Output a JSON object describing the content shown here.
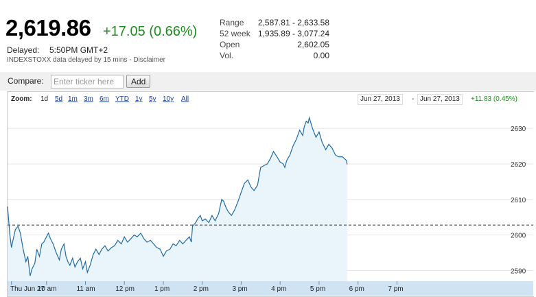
{
  "quote": {
    "price": "2,619.86",
    "change": "+17.05 (0.66%)",
    "delayed_label": "Delayed:",
    "delayed_time": "5:50PM GMT+2",
    "delay_note": "INDEXSTOXX data delayed by 15 mins - Disclaimer"
  },
  "stats": [
    {
      "label": "Range",
      "value": "2,587.81 - 2,633.58"
    },
    {
      "label": "52 week",
      "value": "1,935.89 - 3,077.24"
    },
    {
      "label": "Open",
      "value": "2,602.05"
    },
    {
      "label": "Vol.",
      "value": "0.00"
    }
  ],
  "compare": {
    "label": "Compare:",
    "placeholder": "Enter ticker here",
    "add_label": "Add"
  },
  "zoom": {
    "label": "Zoom:",
    "options": [
      "1d",
      "5d",
      "1m",
      "3m",
      "6m",
      "YTD",
      "1y",
      "5y",
      "10y",
      "All"
    ],
    "active": "1d",
    "date_from": "Jun 27, 2013",
    "date_separator": "-",
    "date_to": "Jun 27, 2013",
    "range_change": "+11.83 (0.45%)"
  },
  "colors": {
    "up": "#1a8f1a",
    "line": "#1f6aa5",
    "fill": "#e9f4fb",
    "axis_band": "#cfe3f2"
  },
  "chart_data": {
    "type": "area",
    "x_ticks": [
      "Thu Jun 27",
      "10 am",
      "11 am",
      "12 pm",
      "1 pm",
      "2 pm",
      "3 pm",
      "4 pm",
      "5 pm",
      "6 pm",
      "7 pm"
    ],
    "y_ticks": [
      2590,
      2600,
      2610,
      2620,
      2630
    ],
    "ylim": [
      2587,
      2636
    ],
    "xlim": [
      9.0,
      22.5
    ],
    "previous_close": 2602.8,
    "series": [
      {
        "values": [
          [
            9.0,
            2608.0
          ],
          [
            9.03,
            2604.0
          ],
          [
            9.06,
            2600.0
          ],
          [
            9.1,
            2596.5
          ],
          [
            9.15,
            2599.0
          ],
          [
            9.2,
            2601.5
          ],
          [
            9.27,
            2602.5
          ],
          [
            9.33,
            2600.5
          ],
          [
            9.4,
            2596.0
          ],
          [
            9.47,
            2592.5
          ],
          [
            9.52,
            2594.0
          ],
          [
            9.58,
            2588.5
          ],
          [
            9.63,
            2590.5
          ],
          [
            9.7,
            2592.0
          ],
          [
            9.75,
            2596.0
          ],
          [
            9.82,
            2594.0
          ],
          [
            9.88,
            2597.5
          ],
          [
            9.93,
            2598.0
          ],
          [
            10.0,
            2599.5
          ],
          [
            10.05,
            2600.5
          ],
          [
            10.1,
            2599.0
          ],
          [
            10.17,
            2597.5
          ],
          [
            10.25,
            2595.0
          ],
          [
            10.33,
            2593.0
          ],
          [
            10.38,
            2596.0
          ],
          [
            10.45,
            2597.5
          ],
          [
            10.5,
            2594.0
          ],
          [
            10.55,
            2592.5
          ],
          [
            10.6,
            2591.5
          ],
          [
            10.67,
            2593.5
          ],
          [
            10.73,
            2591.0
          ],
          [
            10.8,
            2592.5
          ],
          [
            10.87,
            2593.5
          ],
          [
            10.93,
            2590.5
          ],
          [
            11.0,
            2592.5
          ],
          [
            11.05,
            2589.5
          ],
          [
            11.12,
            2591.5
          ],
          [
            11.2,
            2594.5
          ],
          [
            11.27,
            2596.0
          ],
          [
            11.35,
            2594.5
          ],
          [
            11.42,
            2596.0
          ],
          [
            11.5,
            2597.0
          ],
          [
            11.58,
            2595.5
          ],
          [
            11.67,
            2596.5
          ],
          [
            11.75,
            2597.0
          ],
          [
            11.83,
            2598.5
          ],
          [
            11.92,
            2597.5
          ],
          [
            12.0,
            2599.5
          ],
          [
            12.08,
            2598.0
          ],
          [
            12.17,
            2599.0
          ],
          [
            12.25,
            2600.0
          ],
          [
            12.33,
            2599.5
          ],
          [
            12.42,
            2600.5
          ],
          [
            12.5,
            2599.0
          ],
          [
            12.58,
            2598.0
          ],
          [
            12.67,
            2598.5
          ],
          [
            12.75,
            2597.5
          ],
          [
            12.83,
            2596.5
          ],
          [
            12.92,
            2596.0
          ],
          [
            13.0,
            2594.0
          ],
          [
            13.08,
            2595.5
          ],
          [
            13.17,
            2596.0
          ],
          [
            13.25,
            2597.5
          ],
          [
            13.33,
            2597.0
          ],
          [
            13.42,
            2598.5
          ],
          [
            13.5,
            2597.5
          ],
          [
            13.58,
            2598.5
          ],
          [
            13.67,
            2599.5
          ],
          [
            13.72,
            2598.0
          ],
          [
            13.75,
            2602.5
          ],
          [
            13.83,
            2603.5
          ],
          [
            13.88,
            2604.5
          ],
          [
            13.95,
            2605.5
          ],
          [
            14.0,
            2604.0
          ],
          [
            14.08,
            2604.5
          ],
          [
            14.17,
            2603.5
          ],
          [
            14.25,
            2605.5
          ],
          [
            14.33,
            2604.0
          ],
          [
            14.42,
            2606.0
          ],
          [
            14.45,
            2607.5
          ],
          [
            14.5,
            2610.0
          ],
          [
            14.55,
            2609.5
          ],
          [
            14.6,
            2608.0
          ],
          [
            14.67,
            2606.5
          ],
          [
            14.75,
            2605.5
          ],
          [
            14.83,
            2607.0
          ],
          [
            14.92,
            2609.5
          ],
          [
            15.0,
            2612.0
          ],
          [
            15.08,
            2614.5
          ],
          [
            15.17,
            2615.5
          ],
          [
            15.25,
            2613.5
          ],
          [
            15.33,
            2612.5
          ],
          [
            15.42,
            2614.0
          ],
          [
            15.45,
            2616.0
          ],
          [
            15.5,
            2619.0
          ],
          [
            15.58,
            2619.5
          ],
          [
            15.67,
            2620.0
          ],
          [
            15.75,
            2621.5
          ],
          [
            15.83,
            2623.5
          ],
          [
            15.92,
            2622.0
          ],
          [
            16.0,
            2620.5
          ],
          [
            16.08,
            2620.0
          ],
          [
            16.12,
            2619.0
          ],
          [
            16.17,
            2621.0
          ],
          [
            16.25,
            2622.5
          ],
          [
            16.33,
            2625.0
          ],
          [
            16.42,
            2627.0
          ],
          [
            16.5,
            2629.5
          ],
          [
            16.58,
            2628.0
          ],
          [
            16.62,
            2630.5
          ],
          [
            16.67,
            2632.0
          ],
          [
            16.72,
            2631.5
          ],
          [
            16.75,
            2633.0
          ],
          [
            16.83,
            2630.0
          ],
          [
            16.92,
            2627.5
          ],
          [
            17.0,
            2629.0
          ],
          [
            17.08,
            2626.0
          ],
          [
            17.17,
            2624.0
          ],
          [
            17.25,
            2625.5
          ],
          [
            17.33,
            2624.5
          ],
          [
            17.42,
            2622.5
          ],
          [
            17.5,
            2622.0
          ],
          [
            17.6,
            2622.0
          ],
          [
            17.7,
            2621.0
          ],
          [
            17.72,
            2619.86
          ]
        ]
      }
    ],
    "grid": true,
    "legend": "none"
  }
}
